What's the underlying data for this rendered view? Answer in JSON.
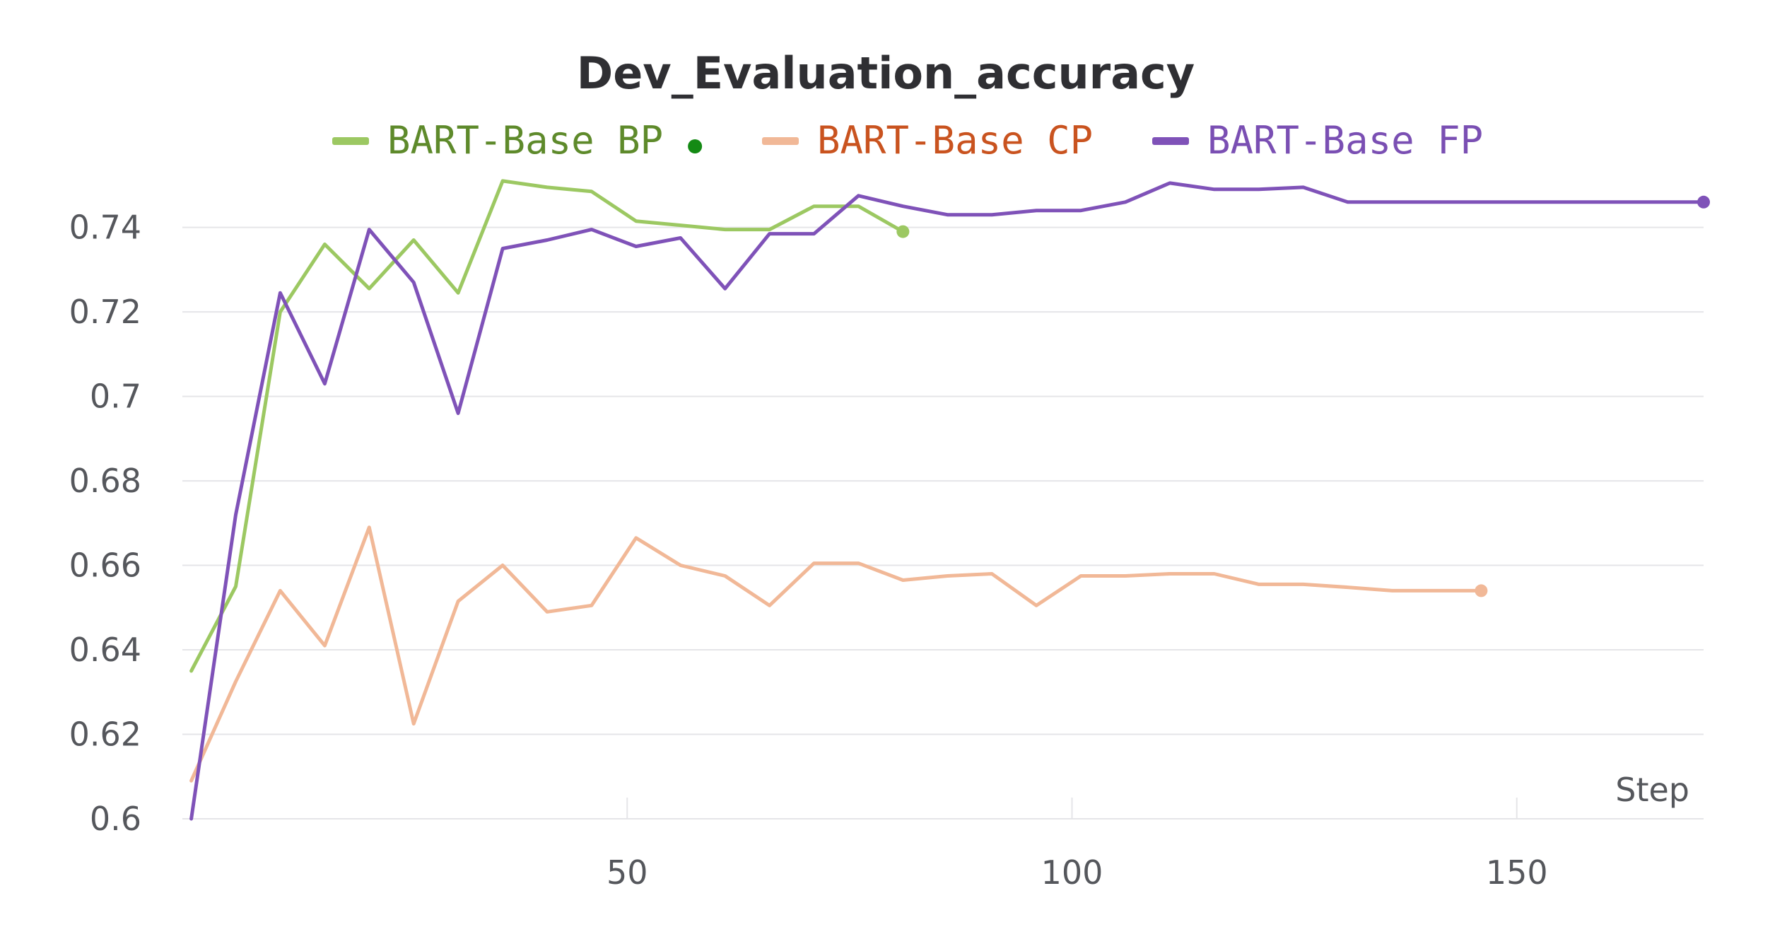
{
  "chart_data": {
    "type": "line",
    "title": "Dev_Evaluation_accuracy",
    "xlabel": "Step",
    "ylabel": "",
    "xlim": [
      0,
      171
    ],
    "ylim": [
      0.6,
      0.755
    ],
    "x_ticks": [
      50,
      100,
      150
    ],
    "y_ticks": [
      0.6,
      0.62,
      0.64,
      0.66,
      0.68,
      0.7,
      0.72,
      0.74
    ],
    "y_tick_labels": [
      "0.6",
      "0.62",
      "0.64",
      "0.66",
      "0.68",
      "0.7",
      "0.72",
      "0.74"
    ],
    "grid": true,
    "legend_position": "top-center",
    "series": [
      {
        "name": "BART-Base BP",
        "color": "#9cc862",
        "text_color": "#5e8a2b",
        "legend_dot_color": "#148a14",
        "x": [
          1,
          6,
          11,
          16,
          21,
          26,
          31,
          36,
          41,
          46,
          51,
          56,
          61,
          66,
          71,
          76,
          81
        ],
        "y": [
          0.635,
          0.655,
          0.72,
          0.736,
          0.7255,
          0.737,
          0.7245,
          0.751,
          0.7495,
          0.7485,
          0.7415,
          0.7405,
          0.7395,
          0.7395,
          0.745,
          0.745,
          0.739
        ]
      },
      {
        "name": "BART-Base CP",
        "color": "#f1b897",
        "text_color": "#c9531f",
        "x": [
          1,
          6,
          11,
          16,
          21,
          26,
          31,
          36,
          41,
          46,
          51,
          56,
          61,
          66,
          71,
          76,
          81,
          86,
          91,
          96,
          101,
          106,
          111,
          116,
          121,
          126,
          131,
          136,
          141,
          146
        ],
        "y": [
          0.609,
          0.6325,
          0.654,
          0.641,
          0.669,
          0.6225,
          0.6515,
          0.66,
          0.649,
          0.6505,
          0.6665,
          0.66,
          0.6575,
          0.6505,
          0.6605,
          0.6605,
          0.6565,
          0.6575,
          0.658,
          0.6505,
          0.6575,
          0.6575,
          0.658,
          0.658,
          0.6555,
          0.6555,
          0.6548,
          0.654,
          0.654,
          0.654
        ]
      },
      {
        "name": "BART-Base FP",
        "color": "#7f52b8",
        "text_color": "#7a4fb3",
        "x": [
          1,
          6,
          11,
          16,
          21,
          26,
          31,
          36,
          41,
          46,
          51,
          56,
          61,
          66,
          71,
          76,
          81,
          86,
          91,
          96,
          101,
          106,
          111,
          116,
          121,
          126,
          131,
          136,
          141,
          146,
          151,
          156,
          161,
          166,
          171
        ],
        "y": [
          0.6,
          0.672,
          0.7245,
          0.703,
          0.7395,
          0.727,
          0.696,
          0.735,
          0.737,
          0.7395,
          0.7355,
          0.7375,
          0.7255,
          0.7385,
          0.7385,
          0.7475,
          0.745,
          0.743,
          0.743,
          0.744,
          0.744,
          0.746,
          0.7505,
          0.749,
          0.749,
          0.7495,
          0.746,
          0.746,
          0.746,
          0.746,
          0.746,
          0.746,
          0.746,
          0.746,
          0.746
        ]
      }
    ]
  }
}
